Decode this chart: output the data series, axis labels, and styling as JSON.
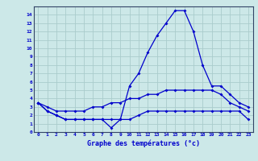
{
  "xlabel": "Graphe des températures (°c)",
  "bg_color": "#cce8e8",
  "grid_color": "#aacccc",
  "line_color": "#0000cc",
  "hours": [
    0,
    1,
    2,
    3,
    4,
    5,
    6,
    7,
    8,
    9,
    10,
    11,
    12,
    13,
    14,
    15,
    16,
    17,
    18,
    19,
    20,
    21,
    22,
    23
  ],
  "temp_current": [
    3.5,
    2.5,
    2.0,
    1.5,
    1.5,
    1.5,
    1.5,
    1.5,
    0.5,
    1.5,
    5.5,
    7.0,
    9.5,
    11.5,
    13.0,
    14.5,
    14.5,
    12.0,
    8.0,
    5.5,
    5.5,
    4.5,
    3.5,
    3.0
  ],
  "temp_max": [
    3.5,
    3.0,
    2.5,
    2.5,
    2.5,
    2.5,
    3.0,
    3.0,
    3.5,
    3.5,
    4.0,
    4.0,
    4.5,
    4.5,
    5.0,
    5.0,
    5.0,
    5.0,
    5.0,
    5.0,
    4.5,
    3.5,
    3.0,
    2.5
  ],
  "temp_min": [
    3.5,
    2.5,
    2.0,
    1.5,
    1.5,
    1.5,
    1.5,
    1.5,
    1.5,
    1.5,
    1.5,
    2.0,
    2.5,
    2.5,
    2.5,
    2.5,
    2.5,
    2.5,
    2.5,
    2.5,
    2.5,
    2.5,
    2.5,
    1.5
  ],
  "ylim": [
    0,
    15
  ],
  "yticks": [
    0,
    1,
    2,
    3,
    4,
    5,
    6,
    7,
    8,
    9,
    10,
    11,
    12,
    13,
    14
  ],
  "xlim_min": -0.5,
  "xlim_max": 23.5
}
